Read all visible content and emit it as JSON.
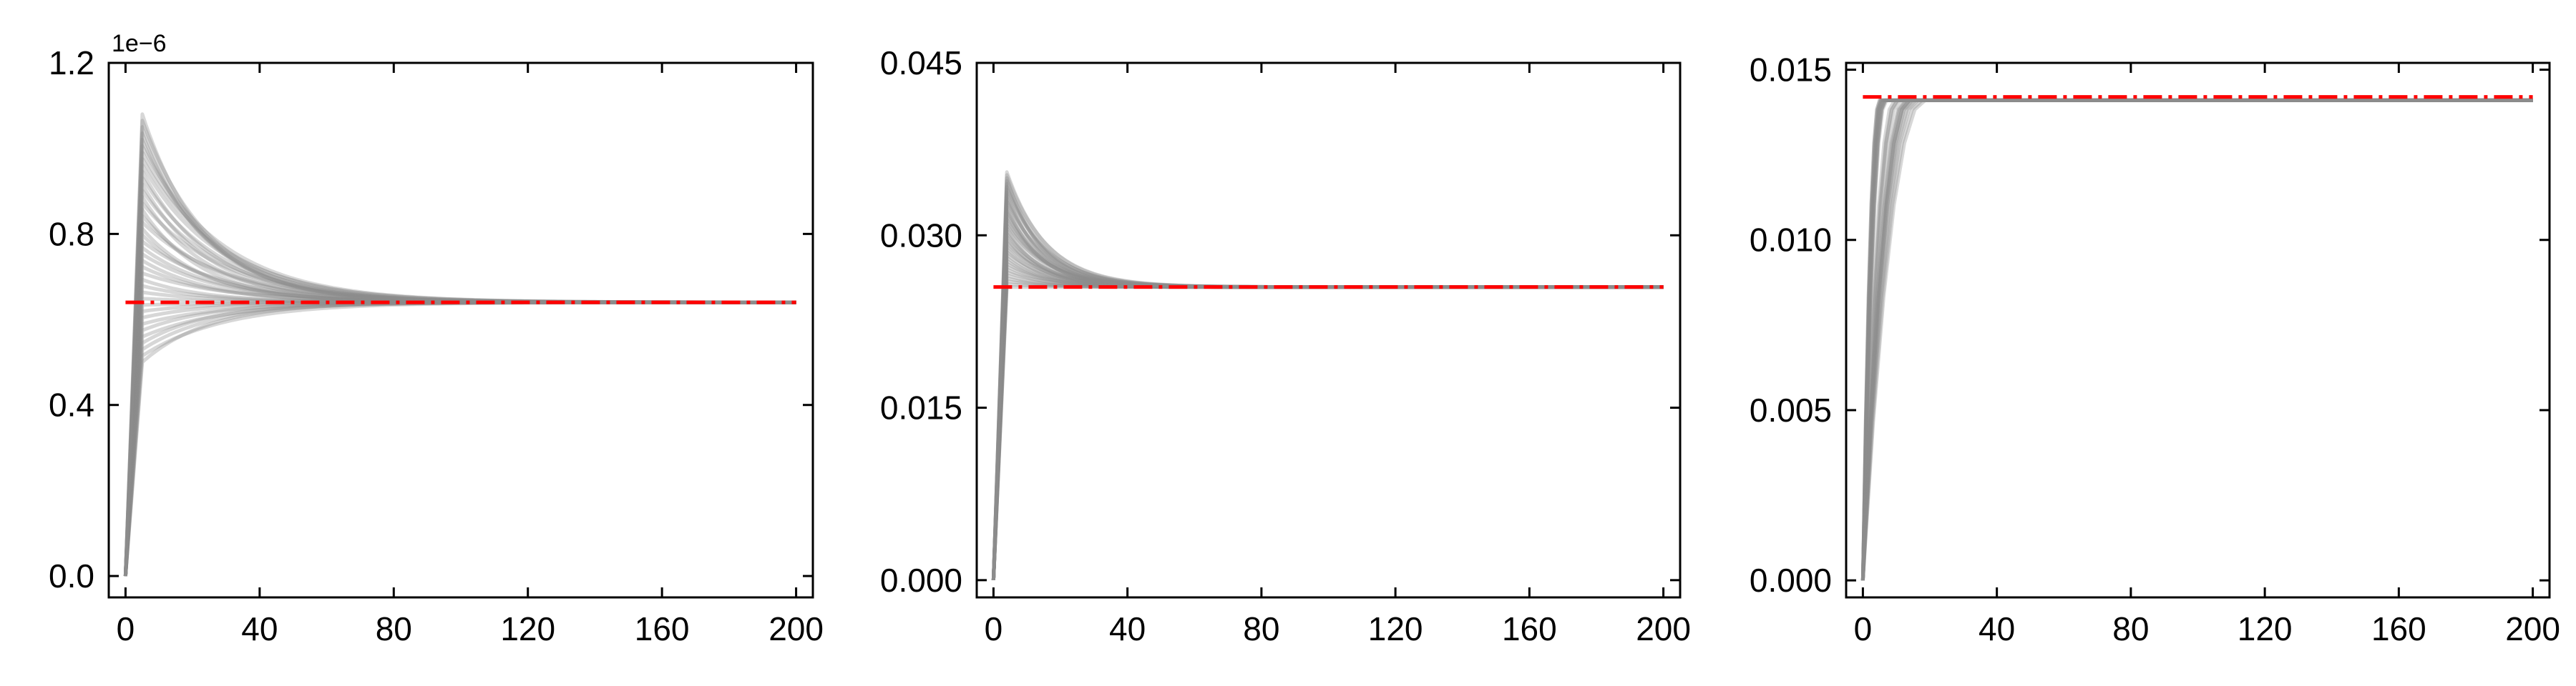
{
  "chart_data": [
    {
      "type": "line",
      "title": "",
      "xlabel": "",
      "ylabel": "",
      "offset_text": "1e−6",
      "xlim": [
        -5,
        205
      ],
      "ylim": [
        -0.05,
        1.2
      ],
      "xticks": [
        0,
        40,
        80,
        120,
        160,
        200
      ],
      "xtick_labels": [
        "0",
        "40",
        "80",
        "120",
        "160",
        "200"
      ],
      "yticks": [
        0.0,
        0.4,
        0.8,
        1.2
      ],
      "ytick_labels": [
        "0.0",
        "0.4",
        "0.8",
        "1.2"
      ],
      "grid": false,
      "ensemble": {
        "count": 40,
        "color": "#8c8c8c",
        "x_start": 0,
        "x_end": 200,
        "peak_x": 5,
        "start_value": 0.0,
        "peak_range": [
          0.5,
          1.08
        ],
        "steady_value": 0.64,
        "settle_x": 80
      },
      "reference": {
        "value": 0.64,
        "x_range": [
          0,
          200
        ],
        "color": "#ff0000",
        "style": "dash-dot"
      }
    },
    {
      "type": "line",
      "title": "",
      "xlabel": "",
      "ylabel": "",
      "offset_text": "",
      "xlim": [
        -5,
        205
      ],
      "ylim": [
        -0.0015,
        0.045
      ],
      "xticks": [
        0,
        40,
        80,
        120,
        160,
        200
      ],
      "xtick_labels": [
        "0",
        "40",
        "80",
        "120",
        "160",
        "200"
      ],
      "yticks": [
        0.0,
        0.015,
        0.03,
        0.045
      ],
      "ytick_labels": [
        "0.000",
        "0.015",
        "0.030",
        "0.045"
      ],
      "grid": false,
      "ensemble": {
        "count": 40,
        "color": "#8c8c8c",
        "x_start": 0,
        "x_end": 200,
        "peak_x": 4,
        "start_value": 0.0,
        "peak_range": [
          0.0255,
          0.0355
        ],
        "steady_value": 0.0255,
        "settle_x": 25
      },
      "reference": {
        "value": 0.0255,
        "x_range": [
          0,
          200
        ],
        "color": "#ff0000",
        "style": "dash-dot"
      }
    },
    {
      "type": "line",
      "title": "",
      "xlabel": "",
      "ylabel": "",
      "offset_text": "",
      "xlim": [
        -5,
        205
      ],
      "ylim": [
        -0.0005,
        0.0152
      ],
      "xticks": [
        0,
        40,
        80,
        120,
        160,
        200
      ],
      "xtick_labels": [
        "0",
        "40",
        "80",
        "120",
        "160",
        "200"
      ],
      "yticks": [
        0.0,
        0.005,
        0.01,
        0.015
      ],
      "ytick_labels": [
        "0.000",
        "0.005",
        "0.010",
        "0.015"
      ],
      "grid": false,
      "ensemble": {
        "count": 30,
        "color": "#8c8c8c",
        "x_start": 0,
        "x_end": 200,
        "rise_x_range": [
          5,
          20
        ],
        "start_value": 0.0,
        "steady_value": 0.0141
      },
      "reference": {
        "value": 0.0142,
        "x_range": [
          0,
          200
        ],
        "color": "#ff0000",
        "style": "dash-dot"
      }
    }
  ]
}
